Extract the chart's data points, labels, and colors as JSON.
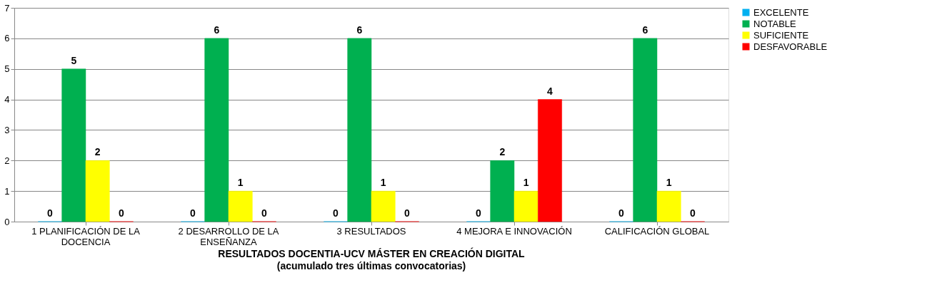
{
  "chart_data": {
    "type": "bar",
    "title": "RESULTADOS DOCENTIA-UCV MÁSTER EN CREACIÓN DIGITAL",
    "subtitle": "(acumulado tres últimas convocatorias)",
    "categories": [
      "1 PLANIFICACIÓN DE LA DOCENCIA",
      "2 DESARROLLO DE LA ENSEÑANZA",
      "3 RESULTADOS",
      "4 MEJORA E INNOVACIÓN",
      "CALIFICACIÓN GLOBAL"
    ],
    "series": [
      {
        "name": "EXCELENTE",
        "color": "#00b0f0",
        "values": [
          0,
          0,
          0,
          0,
          0
        ]
      },
      {
        "name": "NOTABLE",
        "color": "#00b050",
        "values": [
          5,
          6,
          6,
          2,
          6
        ]
      },
      {
        "name": "SUFICIENTE",
        "color": "#ffff00",
        "values": [
          2,
          1,
          1,
          1,
          1
        ]
      },
      {
        "name": "DESFAVORABLE",
        "color": "#ff0000",
        "values": [
          0,
          0,
          0,
          4,
          0
        ]
      }
    ],
    "ylim": [
      0,
      7
    ],
    "yticks": [
      0,
      1,
      2,
      3,
      4,
      5,
      6,
      7
    ],
    "grid": "y",
    "legend": "right",
    "data_labels": true
  }
}
